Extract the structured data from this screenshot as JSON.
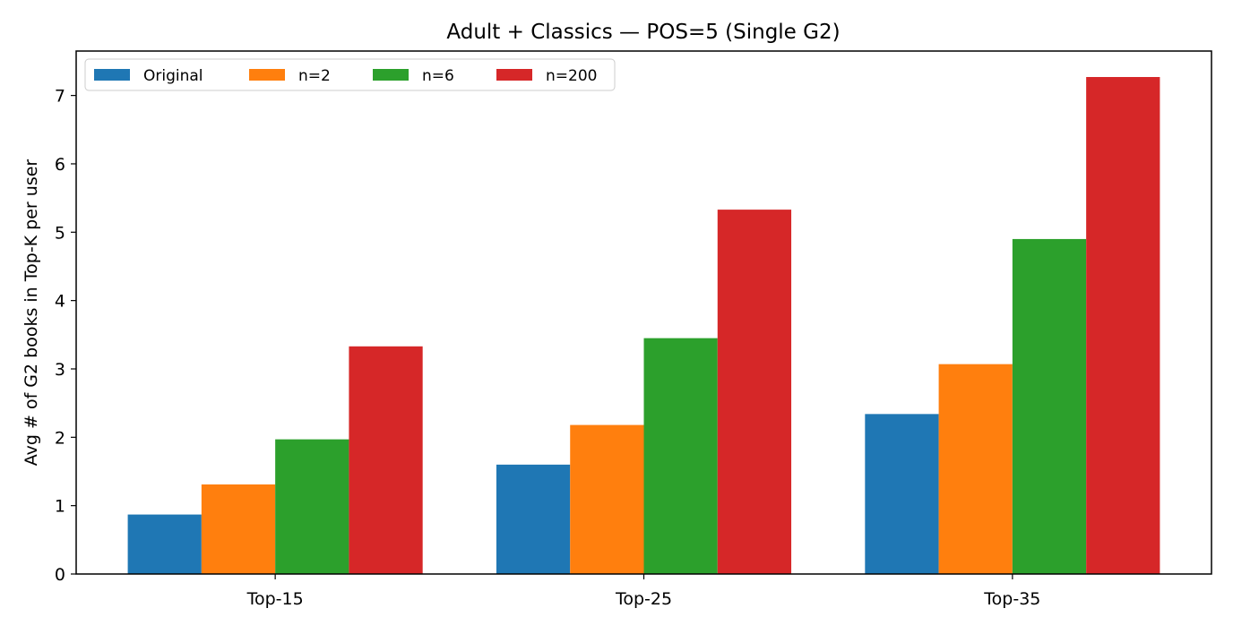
{
  "chart_data": {
    "type": "bar",
    "title": "Adult + Classics — POS=5 (Single G2)",
    "xlabel": "",
    "ylabel": "Avg # of G2 books in Top-K per user",
    "categories": [
      "Top-15",
      "Top-25",
      "Top-35"
    ],
    "series": [
      {
        "name": "Original",
        "color": "#1f77b4",
        "values": [
          0.87,
          1.6,
          2.34
        ]
      },
      {
        "name": "n=2",
        "color": "#ff7f0e",
        "values": [
          1.31,
          2.18,
          3.07
        ]
      },
      {
        "name": "n=6",
        "color": "#2ca02c",
        "values": [
          1.97,
          3.45,
          4.9
        ]
      },
      {
        "name": "n=200",
        "color": "#d62728",
        "values": [
          3.33,
          5.33,
          7.27
        ]
      }
    ],
    "ylim": [
      0,
      7.65
    ],
    "yticks": [
      0,
      1,
      2,
      3,
      4,
      5,
      6,
      7
    ],
    "grid": false,
    "legend": {
      "placement": "top-left",
      "columns": 4
    }
  }
}
